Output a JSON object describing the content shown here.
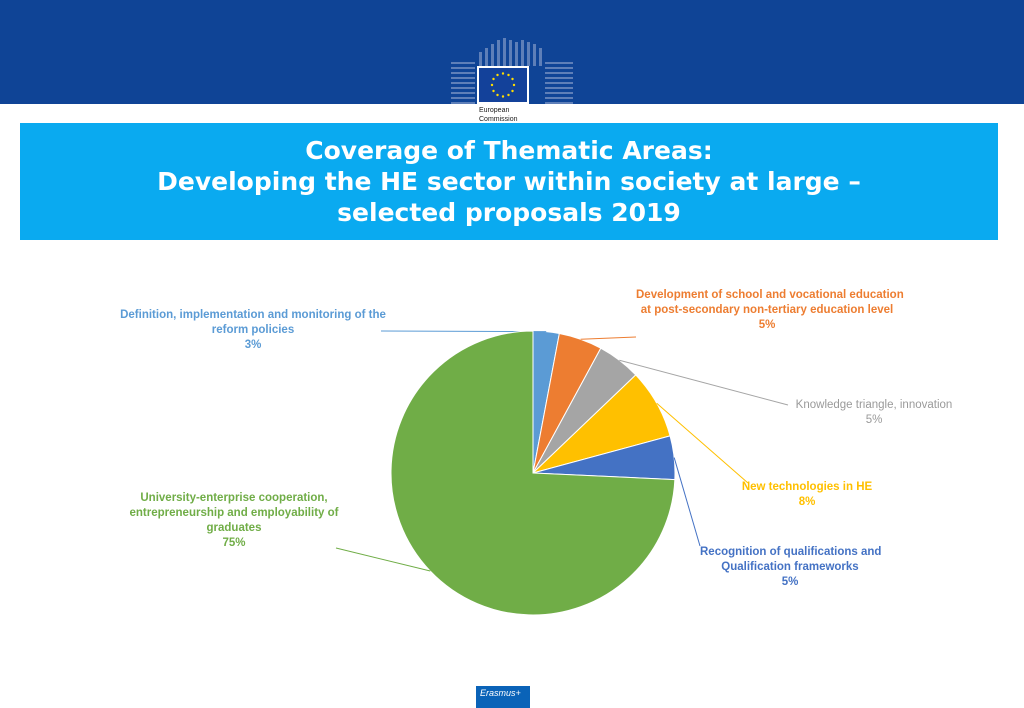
{
  "header": {
    "logo_line1": "European",
    "logo_line2": "Commission"
  },
  "slide": {
    "title_line1": "Coverage of Thematic Areas:",
    "title_line2": "Developing the HE sector within society at large –",
    "title_line3": "selected proposals 2019"
  },
  "footer": {
    "erasmus_label": "Erasmus+"
  },
  "colors": {
    "header_band": "#0f4496",
    "title_band": "#0aaaf0"
  },
  "chart_data": {
    "type": "pie",
    "title": "",
    "slices": [
      {
        "label_lines": [
          "Definition, implementation and monitoring of the",
          "reform policies"
        ],
        "value": 3,
        "value_label": "3%",
        "color": "#5b9bd5"
      },
      {
        "label_lines": [
          "Development of school and vocational education",
          "at post-secondary non-tertiary education level"
        ],
        "value": 5,
        "value_label": "5%",
        "color": "#ed7d31"
      },
      {
        "label_lines": [
          "Knowledge triangle, innovation"
        ],
        "value": 5,
        "value_label": "5%",
        "color": "#a5a5a5"
      },
      {
        "label_lines": [
          "New technologies in HE"
        ],
        "value": 8,
        "value_label": "8%",
        "color": "#ffc000"
      },
      {
        "label_lines": [
          "Recognition of qualifications and",
          "Qualification frameworks"
        ],
        "value": 5,
        "value_label": "5%",
        "color": "#4472c4"
      },
      {
        "label_lines": [
          "University-enterprise cooperation,",
          "entrepreneurship and employability of",
          "graduates"
        ],
        "value": 75,
        "value_label": "75%",
        "color": "#70ad47"
      }
    ]
  }
}
